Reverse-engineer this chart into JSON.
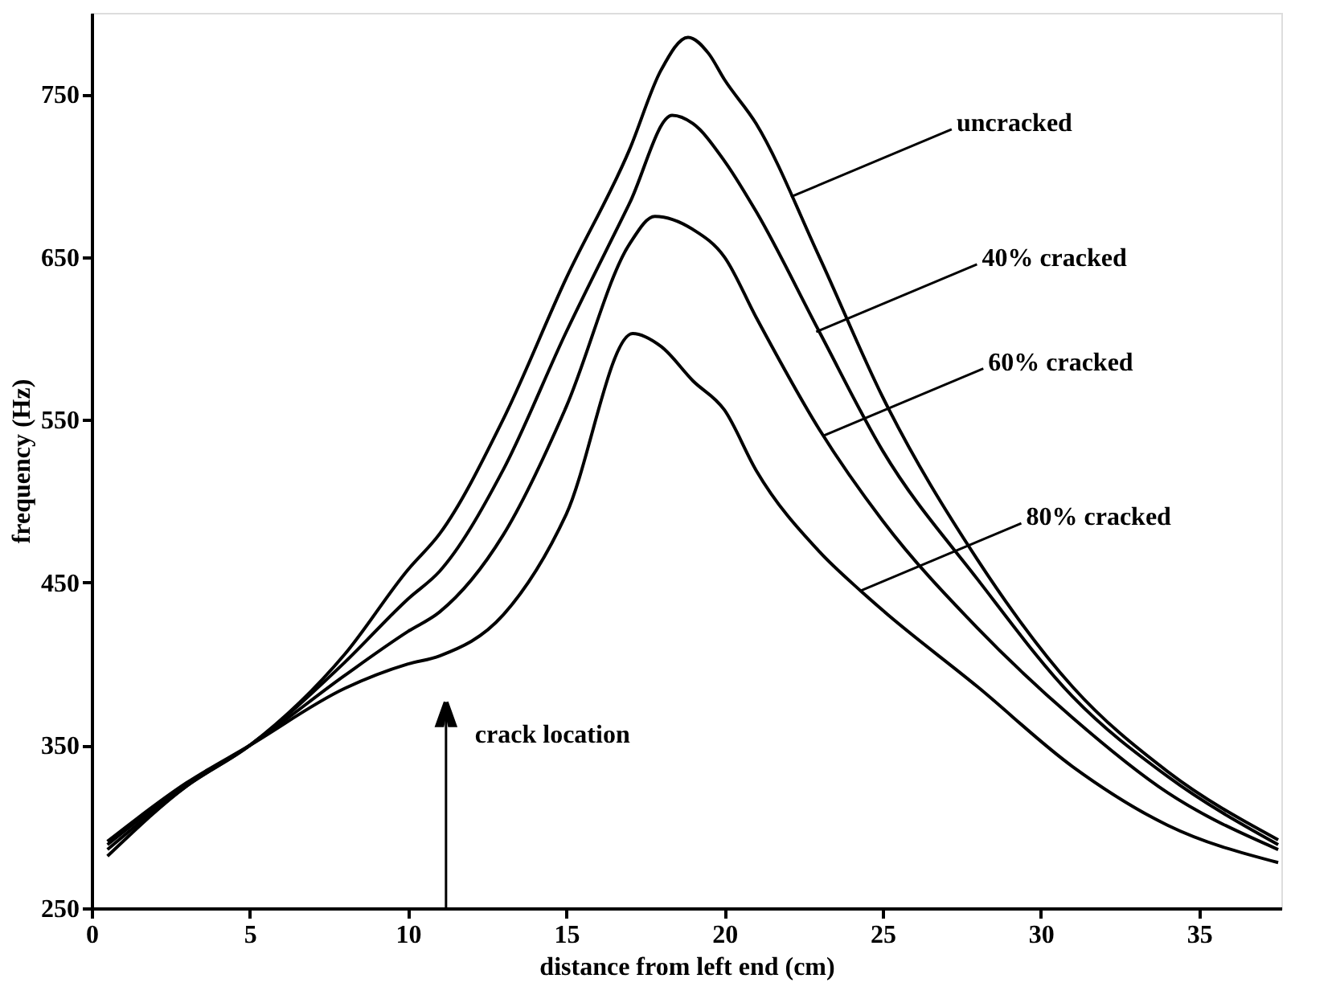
{
  "chart_data": {
    "type": "line",
    "xlabel": "distance from left end (cm)",
    "ylabel": "frequency (Hz)",
    "xlim": [
      0,
      37.6
    ],
    "ylim": [
      250,
      800
    ],
    "xticks": [
      0,
      5,
      10,
      15,
      20,
      25,
      30,
      35
    ],
    "yticks": [
      250,
      350,
      450,
      550,
      650,
      750
    ],
    "grid": false,
    "legend": false,
    "marker": "none",
    "line_style": "solid",
    "series": [
      {
        "color": "#000000",
        "x": [
          0.5,
          3,
          5,
          8,
          10,
          11,
          13,
          15,
          17,
          18,
          18.85,
          19.5,
          20,
          21,
          23,
          25,
          28,
          31,
          34,
          37.5
        ],
        "values": [
          282,
          325,
          350,
          406,
          458,
          480,
          550,
          637,
          716,
          765,
          785,
          775,
          759,
          732,
          650,
          564,
          464,
          386,
          334,
          292
        ]
      },
      {
        "color": "#000000",
        "x": [
          0.5,
          3,
          5,
          8,
          10,
          11,
          13,
          15,
          17,
          18.35,
          19,
          20,
          21,
          23,
          25,
          28,
          31,
          34,
          37.5
        ],
        "values": [
          286,
          325,
          350,
          401,
          440,
          457,
          519,
          604,
          683,
          737,
          732,
          709,
          678,
          604,
          531,
          452,
          380,
          331,
          289
        ]
      },
      {
        "color": "#000000",
        "x": [
          0.5,
          3,
          5,
          8,
          10,
          11,
          13,
          15,
          17,
          17.8,
          19,
          20,
          21,
          23,
          25,
          28,
          31,
          34,
          37.5
        ],
        "values": [
          289,
          326,
          350,
          393,
          420,
          432,
          479,
          558,
          658,
          675,
          667,
          650,
          613,
          544,
          488,
          422,
          367,
          321,
          286
        ]
      },
      {
        "color": "#000000",
        "x": [
          0.5,
          3,
          5,
          8,
          10,
          11,
          13,
          15,
          17.1,
          18,
          19,
          20,
          21,
          23,
          24.3,
          25,
          28,
          31,
          34,
          37.5
        ],
        "values": [
          291,
          327,
          350,
          385,
          400,
          405,
          430,
          492,
          603,
          595,
          574,
          556,
          519,
          469,
          445,
          433,
          386,
          337,
          301,
          278
        ]
      }
    ],
    "annotations": [
      {
        "text": "uncracked",
        "x": 22.1,
        "y": 687
      },
      {
        "text": "40% cracked",
        "x": 22.9,
        "y": 604
      },
      {
        "text": "60% cracked",
        "x": 23.1,
        "y": 540
      },
      {
        "text": "80% cracked",
        "x": 24.3,
        "y": 445
      }
    ],
    "ref_lines": [
      {
        "axis": "x",
        "value": 11.2,
        "label": "crack location",
        "color": "#000000"
      }
    ]
  }
}
